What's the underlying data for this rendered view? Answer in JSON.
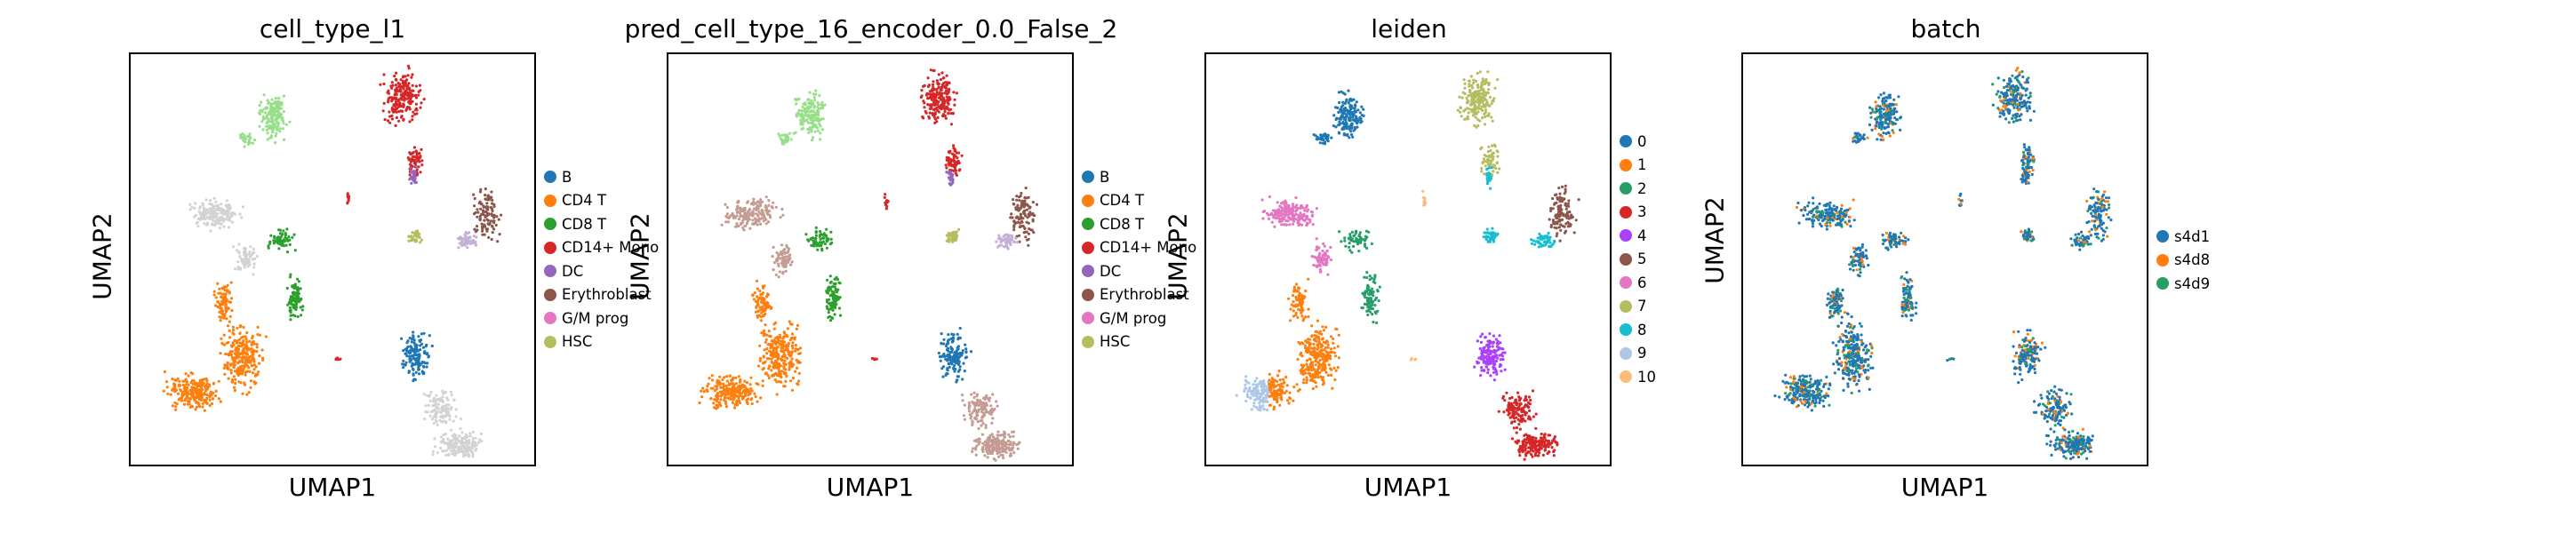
{
  "chart_data": [
    {
      "type": "scatter",
      "title": "cell_type_l1",
      "xlabel": "UMAP1",
      "ylabel": "UMAP2",
      "legend_position": "right",
      "categories": [
        {
          "name": "B",
          "color": "#1f77b4"
        },
        {
          "name": "CD4 T",
          "color": "#ff7f0e"
        },
        {
          "name": "CD8 T",
          "color": "#2ca02c"
        },
        {
          "name": "CD14+ Mono",
          "color": "#d62728"
        },
        {
          "name": "DC",
          "color": "#9467bd"
        },
        {
          "name": "Erythroblast",
          "color": "#8c564b"
        },
        {
          "name": "G/M prog",
          "color": "#e377c2"
        },
        {
          "name": "HSC",
          "color": "#b5bd61"
        }
      ]
    },
    {
      "type": "scatter",
      "title": "pred_cell_type_16_encoder_0.0_False_2",
      "xlabel": "UMAP1",
      "ylabel": "UMAP2",
      "legend_position": "right",
      "categories": [
        {
          "name": "B",
          "color": "#1f77b4"
        },
        {
          "name": "CD4 T",
          "color": "#ff7f0e"
        },
        {
          "name": "CD8 T",
          "color": "#2ca02c"
        },
        {
          "name": "CD14+ Mono",
          "color": "#d62728"
        },
        {
          "name": "DC",
          "color": "#9467bd"
        },
        {
          "name": "Erythroblast",
          "color": "#8c564b"
        },
        {
          "name": "G/M prog",
          "color": "#e377c2"
        },
        {
          "name": "HSC",
          "color": "#b5bd61"
        }
      ]
    },
    {
      "type": "scatter",
      "title": "leiden",
      "xlabel": "UMAP1",
      "ylabel": "UMAP2",
      "legend_position": "right",
      "categories": [
        {
          "name": "0",
          "color": "#1f77b4"
        },
        {
          "name": "1",
          "color": "#ff7f0e"
        },
        {
          "name": "2",
          "color": "#279e68"
        },
        {
          "name": "3",
          "color": "#d62728"
        },
        {
          "name": "4",
          "color": "#aa40fc"
        },
        {
          "name": "5",
          "color": "#8c564b"
        },
        {
          "name": "6",
          "color": "#e377c2"
        },
        {
          "name": "7",
          "color": "#b5bd61"
        },
        {
          "name": "8",
          "color": "#17becf"
        },
        {
          "name": "9",
          "color": "#aec7e8"
        },
        {
          "name": "10",
          "color": "#ffbb78"
        }
      ]
    },
    {
      "type": "scatter",
      "title": "batch",
      "xlabel": "UMAP1",
      "ylabel": "UMAP2",
      "legend_position": "right",
      "categories": [
        {
          "name": "s4d1",
          "color": "#1f77b4"
        },
        {
          "name": "s4d8",
          "color": "#ff7f0e"
        },
        {
          "name": "s4d9",
          "color": "#279e68"
        }
      ]
    }
  ]
}
